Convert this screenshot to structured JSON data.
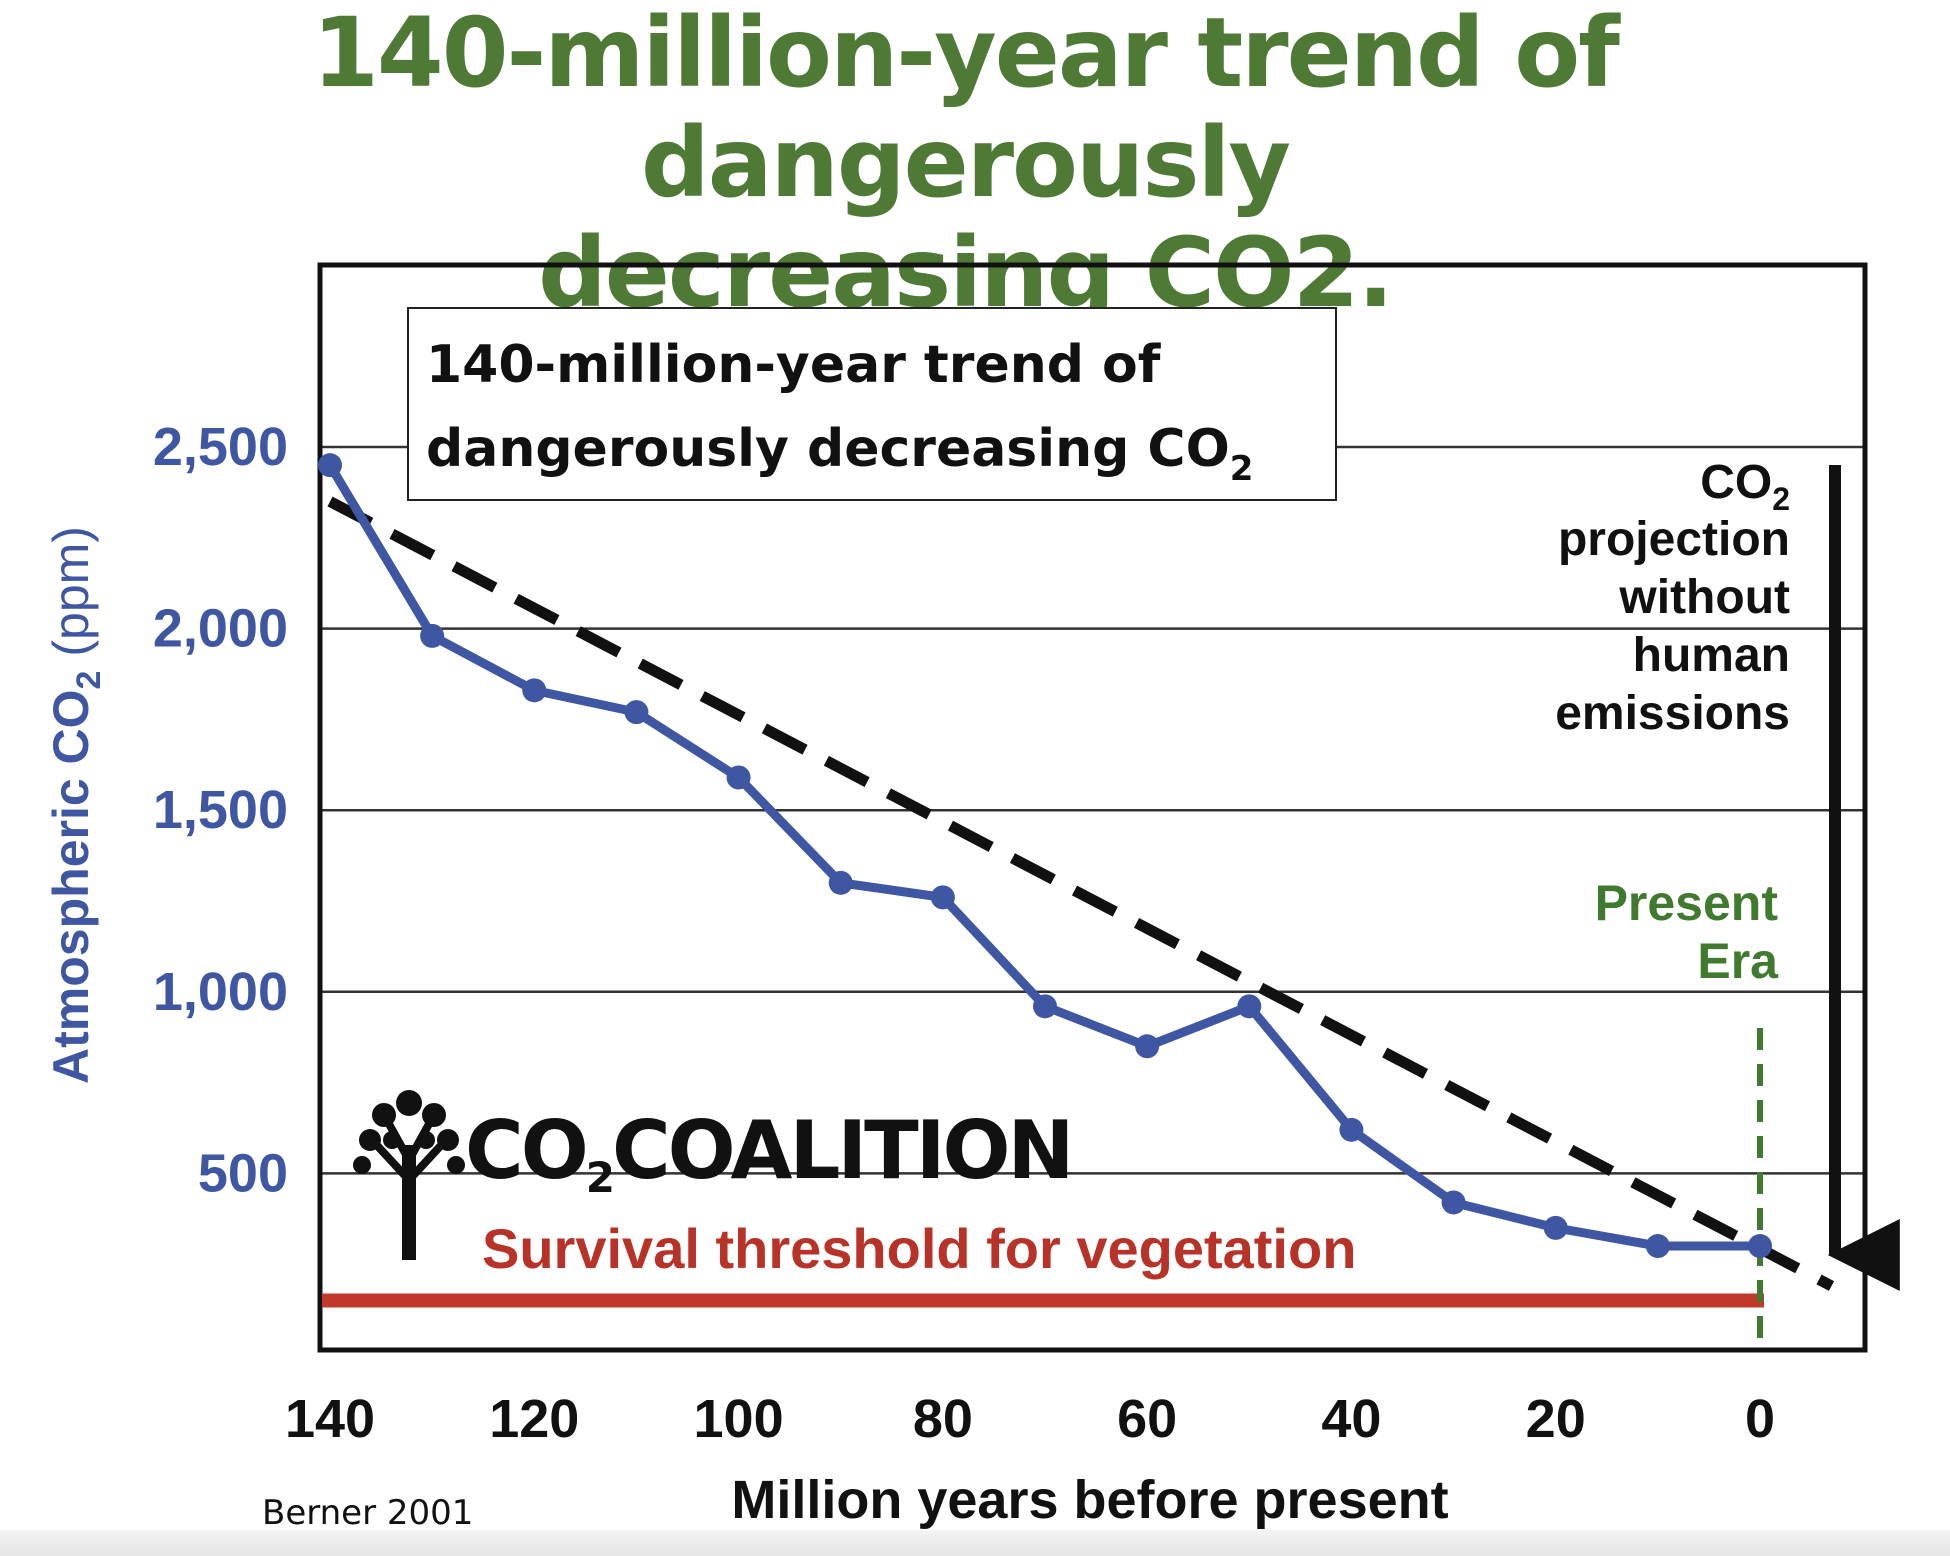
{
  "page_title": {
    "line1": "140-million-year trend of dangerously",
    "line2": "decreasing CO2."
  },
  "colors": {
    "title_green": "#4e7a36",
    "series_blue": "#3f56a3",
    "threshold_red": "#c0392b",
    "present_green": "#3f7a2e",
    "trend_black": "#111111",
    "grid": "#333333"
  },
  "logo": {
    "text_main": "CO",
    "text_sub": "2",
    "text_rest": "COALITION",
    "icon": "tree-icon"
  },
  "source_note": "Berner 2001",
  "chart_data": {
    "type": "line",
    "title_box": {
      "line1": "140-million-year trend of",
      "line2": "dangerously decreasing CO",
      "line2_sub": "2"
    },
    "xlabel": "Million years before present",
    "ylabel": {
      "pre": "Atmospheric CO",
      "sub": "2",
      "post": " (ppm)"
    },
    "x_ticks": [
      140,
      120,
      100,
      80,
      60,
      40,
      20,
      0
    ],
    "x_tick_labels": [
      "140",
      "120",
      "100",
      "80",
      "60",
      "40",
      "20",
      "0"
    ],
    "y_ticks": [
      500,
      1000,
      1500,
      2000,
      2500
    ],
    "y_tick_labels": [
      "500",
      "1,000",
      "1,500",
      "2,000",
      "2,500"
    ],
    "xlim": [
      140,
      -10
    ],
    "ylim": [
      0,
      3000
    ],
    "grid": true,
    "series": [
      {
        "x": [
          140,
          130,
          120,
          110,
          100,
          90,
          80,
          70,
          60,
          50,
          40,
          30,
          20,
          10,
          0
        ],
        "y": [
          2450,
          1980,
          1830,
          1770,
          1590,
          1300,
          1260,
          960,
          850,
          960,
          620,
          420,
          350,
          300,
          300
        ]
      }
    ],
    "trend_line": {
      "x": [
        140,
        -7
      ],
      "y": [
        2350,
        190
      ]
    },
    "threshold": {
      "value": 150,
      "label": "Survival threshold for vegetation"
    },
    "present_era": {
      "x": 0,
      "label_line1": "Present",
      "label_line2": "Era"
    },
    "projection": {
      "label_pre": "CO",
      "label_sub": "2",
      "label_lines": [
        "projection",
        "without",
        "human",
        "emissions"
      ]
    }
  }
}
